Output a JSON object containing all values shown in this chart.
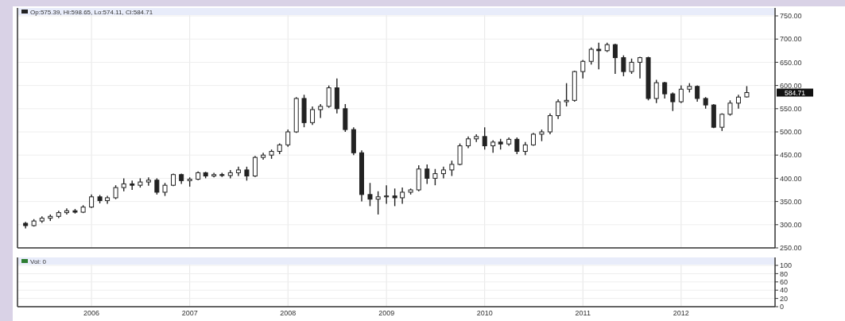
{
  "chart_data": [
    {
      "type": "candlestick",
      "x": [
        "2005-05",
        "2005-06",
        "2005-07",
        "2005-08",
        "2005-09",
        "2005-10",
        "2005-11",
        "2005-12",
        "2006-01",
        "2006-02",
        "2006-03",
        "2006-04",
        "2006-05",
        "2006-06",
        "2006-07",
        "2006-08",
        "2006-09",
        "2006-10",
        "2006-11",
        "2006-12",
        "2007-01",
        "2007-02",
        "2007-03",
        "2007-04",
        "2007-05",
        "2007-06",
        "2007-07",
        "2007-08",
        "2007-09",
        "2007-10",
        "2007-11",
        "2007-12",
        "2008-01",
        "2008-02",
        "2008-03",
        "2008-04",
        "2008-05",
        "2008-06",
        "2008-07",
        "2008-08",
        "2008-09",
        "2008-10",
        "2008-11",
        "2008-12",
        "2009-01",
        "2009-02",
        "2009-03",
        "2009-04",
        "2009-05",
        "2009-06",
        "2009-07",
        "2009-08",
        "2009-09",
        "2009-10",
        "2009-11",
        "2009-12",
        "2010-01",
        "2010-02",
        "2010-03",
        "2010-04",
        "2010-05",
        "2010-06",
        "2010-07",
        "2010-08",
        "2010-09",
        "2010-10",
        "2010-11",
        "2010-12",
        "2011-01",
        "2011-02",
        "2011-03",
        "2011-04",
        "2011-05",
        "2011-06",
        "2011-07",
        "2011-08",
        "2011-09",
        "2011-10",
        "2011-11",
        "2011-12",
        "2012-01",
        "2012-02",
        "2012-03",
        "2012-04",
        "2012-05",
        "2012-06",
        "2012-07",
        "2012-08",
        "2012-09"
      ],
      "series": [
        {
          "name": "Op:575.39, Hi:598.65, Lo:574.11, Cl:584.71",
          "color": "#222222",
          "ohlc": [
            [
              303,
              306,
              292,
              298
            ],
            [
              298,
              312,
              296,
              308
            ],
            [
              308,
              318,
              304,
              314
            ],
            [
              314,
              322,
              308,
              318
            ],
            [
              318,
              330,
              314,
              326
            ],
            [
              326,
              335,
              322,
              330
            ],
            [
              330,
              334,
              324,
              327
            ],
            [
              327,
              342,
              325,
              338
            ],
            [
              338,
              365,
              336,
              360
            ],
            [
              360,
              364,
              346,
              352
            ],
            [
              352,
              362,
              345,
              358
            ],
            [
              358,
              385,
              355,
              380
            ],
            [
              380,
              400,
              372,
              388
            ],
            [
              388,
              395,
              375,
              385
            ],
            [
              385,
              400,
              380,
              392
            ],
            [
              392,
              402,
              384,
              396
            ],
            [
              396,
              400,
              365,
              370
            ],
            [
              370,
              390,
              362,
              385
            ],
            [
              385,
              410,
              383,
              408
            ],
            [
              408,
              410,
              388,
              395
            ],
            [
              395,
              402,
              382,
              398
            ],
            [
              398,
              415,
              396,
              412
            ],
            [
              412,
              414,
              400,
              405
            ],
            [
              405,
              412,
              402,
              408
            ],
            [
              408,
              412,
              403,
              406
            ],
            [
              406,
              418,
              400,
              412
            ],
            [
              412,
              425,
              405,
              418
            ],
            [
              418,
              425,
              395,
              405
            ],
            [
              405,
              448,
              403,
              445
            ],
            [
              445,
              455,
              440,
              450
            ],
            [
              450,
              462,
              442,
              458
            ],
            [
              458,
              475,
              452,
              472
            ],
            [
              472,
              505,
              468,
              500
            ],
            [
              500,
              575,
              498,
              572
            ],
            [
              572,
              580,
              510,
              520
            ],
            [
              520,
              555,
              515,
              548
            ],
            [
              548,
              560,
              530,
              555
            ],
            [
              555,
              600,
              552,
              595
            ],
            [
              595,
              615,
              540,
              550
            ],
            [
              550,
              560,
              500,
              505
            ],
            [
              505,
              510,
              450,
              455
            ],
            [
              455,
              460,
              350,
              365
            ],
            [
              365,
              390,
              340,
              355
            ],
            [
              355,
              372,
              322,
              360
            ],
            [
              360,
              385,
              345,
              362
            ],
            [
              362,
              378,
              340,
              358
            ],
            [
              358,
              380,
              345,
              370
            ],
            [
              370,
              378,
              365,
              375
            ],
            [
              375,
              428,
              372,
              420
            ],
            [
              420,
              430,
              388,
              400
            ],
            [
              400,
              420,
              385,
              410
            ],
            [
              410,
              425,
              400,
              418
            ],
            [
              418,
              438,
              405,
              430
            ],
            [
              430,
              475,
              428,
              470
            ],
            [
              470,
              490,
              465,
              485
            ],
            [
              485,
              495,
              478,
              490
            ],
            [
              490,
              510,
              462,
              470
            ],
            [
              470,
              482,
              455,
              478
            ],
            [
              478,
              485,
              462,
              474
            ],
            [
              474,
              488,
              470,
              484
            ],
            [
              484,
              488,
              452,
              458
            ],
            [
              458,
              478,
              450,
              472
            ],
            [
              472,
              498,
              470,
              495
            ],
            [
              495,
              505,
              480,
              500
            ],
            [
              500,
              540,
              495,
              535
            ],
            [
              535,
              570,
              528,
              565
            ],
            [
              565,
              605,
              555,
              568
            ],
            [
              568,
              632,
              565,
              630
            ],
            [
              630,
              655,
              615,
              652
            ],
            [
              652,
              682,
              645,
              678
            ],
            [
              678,
              692,
              635,
              675
            ],
            [
              675,
              692,
              672,
              688
            ],
            [
              688,
              690,
              625,
              660
            ],
            [
              660,
              665,
              620,
              630
            ],
            [
              630,
              658,
              625,
              650
            ],
            [
              650,
              662,
              615,
              660
            ],
            [
              660,
              662,
              568,
              572
            ],
            [
              572,
              612,
              562,
              606
            ],
            [
              606,
              608,
              572,
              582
            ],
            [
              582,
              585,
              545,
              565
            ],
            [
              565,
              600,
              562,
              592
            ],
            [
              592,
              605,
              585,
              598
            ],
            [
              598,
              600,
              565,
              572
            ],
            [
              572,
              575,
              550,
              558
            ],
            [
              558,
              560,
              508,
              510
            ],
            [
              510,
              540,
              502,
              538
            ],
            [
              538,
              568,
              535,
              562
            ],
            [
              562,
              580,
              550,
              575
            ],
            [
              575.39,
              598.65,
              574.11,
              584.71
            ]
          ]
        }
      ],
      "xlim": [
        "2005-04-01",
        "2012-12-15"
      ],
      "xticks": [
        "2006",
        "2007",
        "2008",
        "2009",
        "2010",
        "2011",
        "2012"
      ],
      "ylim": [
        250,
        750
      ],
      "yticks": [
        {
          "value": 250,
          "label": "250.00"
        },
        {
          "value": 300,
          "label": "300.00"
        },
        {
          "value": 350,
          "label": "350.00"
        },
        {
          "value": 400,
          "label": "400.00"
        },
        {
          "value": 450,
          "label": "450.00"
        },
        {
          "value": 500,
          "label": "500.00"
        },
        {
          "value": 550,
          "label": "550.00"
        },
        {
          "value": 600,
          "label": "600.00"
        },
        {
          "value": 650,
          "label": "650.00"
        },
        {
          "value": 700,
          "label": "700.00"
        },
        {
          "value": 750,
          "label": "750.00"
        }
      ],
      "annotations": [
        "584.71"
      ],
      "grid": true,
      "legend": "top left",
      "tick_labels": "y"
    },
    {
      "type": "bar",
      "x": [
        "2005-05",
        "2005-06",
        "2005-07",
        "2005-08",
        "2005-09",
        "2005-10",
        "2005-11",
        "2005-12",
        "2006-01",
        "2006-02",
        "2006-03",
        "2006-04",
        "2006-05",
        "2006-06",
        "2006-07",
        "2006-08",
        "2006-09",
        "2006-10",
        "2006-11",
        "2006-12",
        "2007-01",
        "2007-02",
        "2007-03",
        "2007-04",
        "2007-05",
        "2007-06",
        "2007-07",
        "2007-08",
        "2007-09",
        "2007-10",
        "2007-11",
        "2007-12",
        "2008-01",
        "2008-02",
        "2008-03",
        "2008-04",
        "2008-05",
        "2008-06",
        "2008-07",
        "2008-08",
        "2008-09",
        "2008-10",
        "2008-11",
        "2008-12",
        "2009-01",
        "2009-02",
        "2009-03",
        "2009-04",
        "2009-05",
        "2009-06",
        "2009-07",
        "2009-08",
        "2009-09",
        "2009-10",
        "2009-11",
        "2009-12",
        "2010-01",
        "2010-02",
        "2010-03",
        "2010-04",
        "2010-05",
        "2010-06",
        "2010-07",
        "2010-08",
        "2010-09",
        "2010-10",
        "2010-11",
        "2010-12",
        "2011-01",
        "2011-02",
        "2011-03",
        "2011-04",
        "2011-05",
        "2011-06",
        "2011-07",
        "2011-08",
        "2011-09",
        "2011-10",
        "2011-11",
        "2011-12",
        "2012-01",
        "2012-02",
        "2012-03",
        "2012-04",
        "2012-05",
        "2012-06",
        "2012-07",
        "2012-08",
        "2012-09"
      ],
      "series": [
        {
          "name": "Vol: 0",
          "color": "#2e7d32",
          "values": [
            0,
            0,
            0,
            0,
            0,
            0,
            0,
            0,
            0,
            0,
            0,
            0,
            0,
            0,
            0,
            0,
            0,
            0,
            0,
            0,
            0,
            0,
            0,
            0,
            0,
            0,
            0,
            0,
            0,
            0,
            0,
            0,
            0,
            0,
            0,
            0,
            0,
            0,
            0,
            0,
            0,
            0,
            0,
            0,
            0,
            0,
            0,
            0,
            0,
            0,
            0,
            0,
            0,
            0,
            0,
            0,
            0,
            0,
            0,
            0,
            0,
            0,
            0,
            0,
            0,
            0,
            0,
            0,
            0,
            0,
            0,
            0,
            0,
            0,
            0,
            0,
            0,
            0,
            0,
            0,
            0,
            0,
            0,
            0,
            0,
            0,
            0,
            0,
            0
          ]
        }
      ],
      "xlim": [
        "2005-04-01",
        "2012-12-15"
      ],
      "xticks": [
        "2006",
        "2007",
        "2008",
        "2009",
        "2010",
        "2011",
        "2012"
      ],
      "ylim": [
        0,
        100
      ],
      "yticks": [
        0,
        20,
        40,
        60,
        80,
        100
      ],
      "grid": true,
      "legend": "top left"
    }
  ]
}
